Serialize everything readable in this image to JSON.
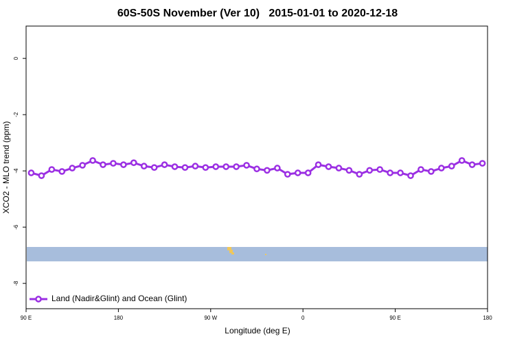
{
  "chart_data": {
    "type": "line",
    "title": "60S-50S November (Ver 10)   2015-01-01 to 2020-12-18",
    "x_label": "Longitude (deg E)",
    "y_label": "XCO2 - MLO trend (ppm)",
    "x": [
      95,
      105,
      115,
      125,
      135,
      145,
      155,
      165,
      175,
      185,
      195,
      205,
      215,
      225,
      235,
      245,
      255,
      265,
      275,
      285,
      295,
      305,
      315,
      325,
      335,
      345,
      355,
      365,
      375,
      385,
      395,
      405,
      415,
      425,
      435,
      445,
      455,
      465,
      475,
      485,
      495,
      505,
      515,
      525,
      535
    ],
    "series": [
      {
        "name": "Land (Nadir&Glint) and Ocean (Glint)",
        "color": "#9b2fe3",
        "values": [
          -4.07,
          -4.17,
          -3.95,
          -4.02,
          -3.9,
          -3.8,
          -3.63,
          -3.78,
          -3.73,
          -3.78,
          -3.71,
          -3.83,
          -3.88,
          -3.78,
          -3.85,
          -3.88,
          -3.83,
          -3.88,
          -3.85,
          -3.85,
          -3.85,
          -3.8,
          -3.93,
          -3.98,
          -3.9,
          -4.12,
          -4.07,
          -4.07,
          -3.78,
          -3.85,
          -3.9,
          -3.98,
          -4.12,
          -3.98,
          -3.95,
          -4.07,
          -4.07,
          -4.17,
          -3.95,
          -4.02,
          -3.9,
          -3.83,
          -3.63,
          -3.78,
          -3.73
        ]
      }
    ],
    "xlim": [
      90,
      540
    ],
    "xticks": [
      {
        "value": 90,
        "label": "90 E"
      },
      180,
      {
        "value": 270,
        "label": "90 W"
      },
      {
        "value": 360,
        "label": "0"
      },
      {
        "value": 450,
        "label": "90 E"
      },
      {
        "value": 540,
        "label": "180"
      }
    ],
    "ylim": [
      -8.9,
      1.15
    ],
    "yticks": [
      0,
      -2,
      -4,
      -6,
      -8
    ],
    "legend": "bottom-left"
  }
}
